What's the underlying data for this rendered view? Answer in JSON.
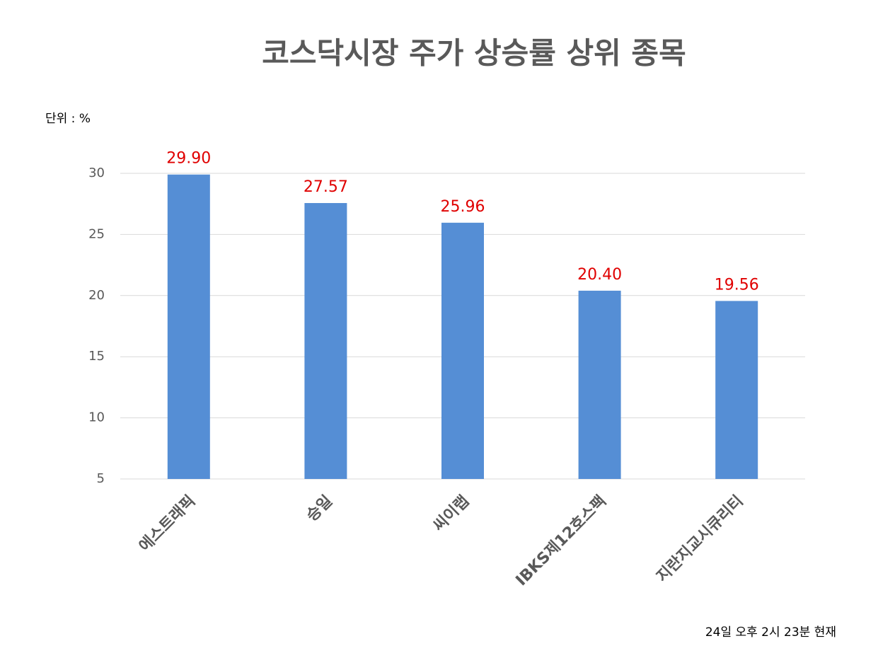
{
  "chart_data": {
    "type": "bar",
    "title": "코스닥시장 주가 상승률 상위 종목",
    "unit_label": "단위 : %",
    "footnote": "24일 오후 2시 23분 현재",
    "categories": [
      "에스트래픽",
      "승일",
      "씨이랩",
      "IBKS제12호스팩",
      "지란지교시큐리티"
    ],
    "values": [
      29.9,
      27.57,
      25.96,
      20.4,
      19.56
    ],
    "value_labels": [
      "29.90",
      "27.57",
      "25.96",
      "20.40",
      "19.56"
    ],
    "color": "#558ed5",
    "value_label_color": "#e00000",
    "ylim": [
      5,
      30
    ],
    "yticks": [
      5,
      10,
      15,
      20,
      25,
      30
    ],
    "grid": true
  }
}
